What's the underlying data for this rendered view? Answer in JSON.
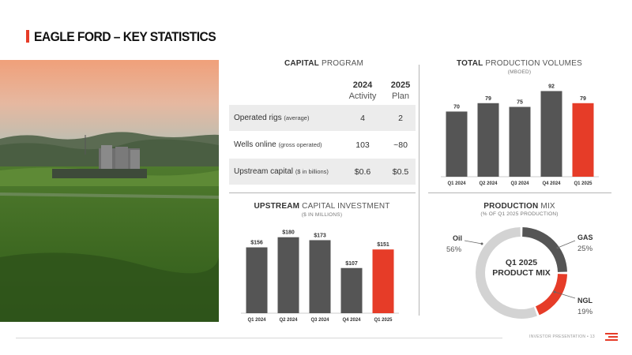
{
  "page": {
    "title": "EAGLE FORD – KEY STATISTICS",
    "footer": "INVESTOR PRESENTATION  •  13"
  },
  "colors": {
    "accent": "#e63c28",
    "bar": "#555555",
    "light_gray": "#d3d3d3"
  },
  "capital_program": {
    "title_bold": "CAPITAL",
    "title_rest": " PROGRAM",
    "col1_year": "2024",
    "col1_sub": "Activity",
    "col2_year": "2025",
    "col2_sub": "Plan",
    "rows": [
      {
        "label": "Operated rigs",
        "qualifier": "(average)",
        "v2024": "4",
        "v2025": "2"
      },
      {
        "label": "Wells online",
        "qualifier": "(gross operated)",
        "v2024": "103",
        "v2025": "~80"
      },
      {
        "label": "Upstream capital",
        "qualifier": "($ in billions)",
        "v2024": "$0.6",
        "v2025": "$0.5"
      }
    ]
  },
  "total_production": {
    "title_bold": "TOTAL",
    "title_rest": " PRODUCTION VOLUMES",
    "subtitle": "(MBOED)"
  },
  "upstream_capital": {
    "title_bold": "UPSTREAM",
    "title_rest": " CAPITAL INVESTMENT",
    "subtitle": "($ IN MILLIONS)"
  },
  "production_mix": {
    "title_bold": "PRODUCTION",
    "title_rest": " MIX",
    "subtitle": "(% OF Q1 2025 PRODUCTION)",
    "center_line1": "Q1 2025",
    "center_line2": "PRODUCT MIX",
    "oil_label": "Oil",
    "oil_pct": "56%",
    "gas_label": "GAS",
    "gas_pct": "25%",
    "ngl_label": "NGL",
    "ngl_pct": "19%"
  },
  "chart_data": [
    {
      "type": "bar",
      "title": "TOTAL PRODUCTION VOLUMES",
      "subtitle": "(MBOED)",
      "categories": [
        "Q1 2024",
        "Q2 2024",
        "Q3 2024",
        "Q4 2024",
        "Q1 2025"
      ],
      "values": [
        70,
        79,
        75,
        92,
        79
      ],
      "value_labels": [
        "70",
        "79",
        "75",
        "92",
        "79"
      ],
      "highlight_last": true,
      "ylim": [
        0,
        100
      ]
    },
    {
      "type": "bar",
      "title": "UPSTREAM CAPITAL INVESTMENT",
      "subtitle": "($ IN MILLIONS)",
      "categories": [
        "Q1 2024",
        "Q2 2024",
        "Q3 2024",
        "Q4 2024",
        "Q1 2025"
      ],
      "values": [
        156,
        180,
        173,
        107,
        151
      ],
      "value_labels": [
        "$156",
        "$180",
        "$173",
        "$107",
        "$151"
      ],
      "highlight_last": true,
      "ylim": [
        0,
        200
      ]
    },
    {
      "type": "pie",
      "title": "PRODUCTION MIX",
      "subtitle": "(% OF Q1 2025 PRODUCTION)",
      "labels": [
        "Oil",
        "GAS",
        "NGL"
      ],
      "values": [
        56,
        25,
        19
      ],
      "colors": [
        "#d3d3d3",
        "#555555",
        "#e63c28"
      ]
    }
  ]
}
